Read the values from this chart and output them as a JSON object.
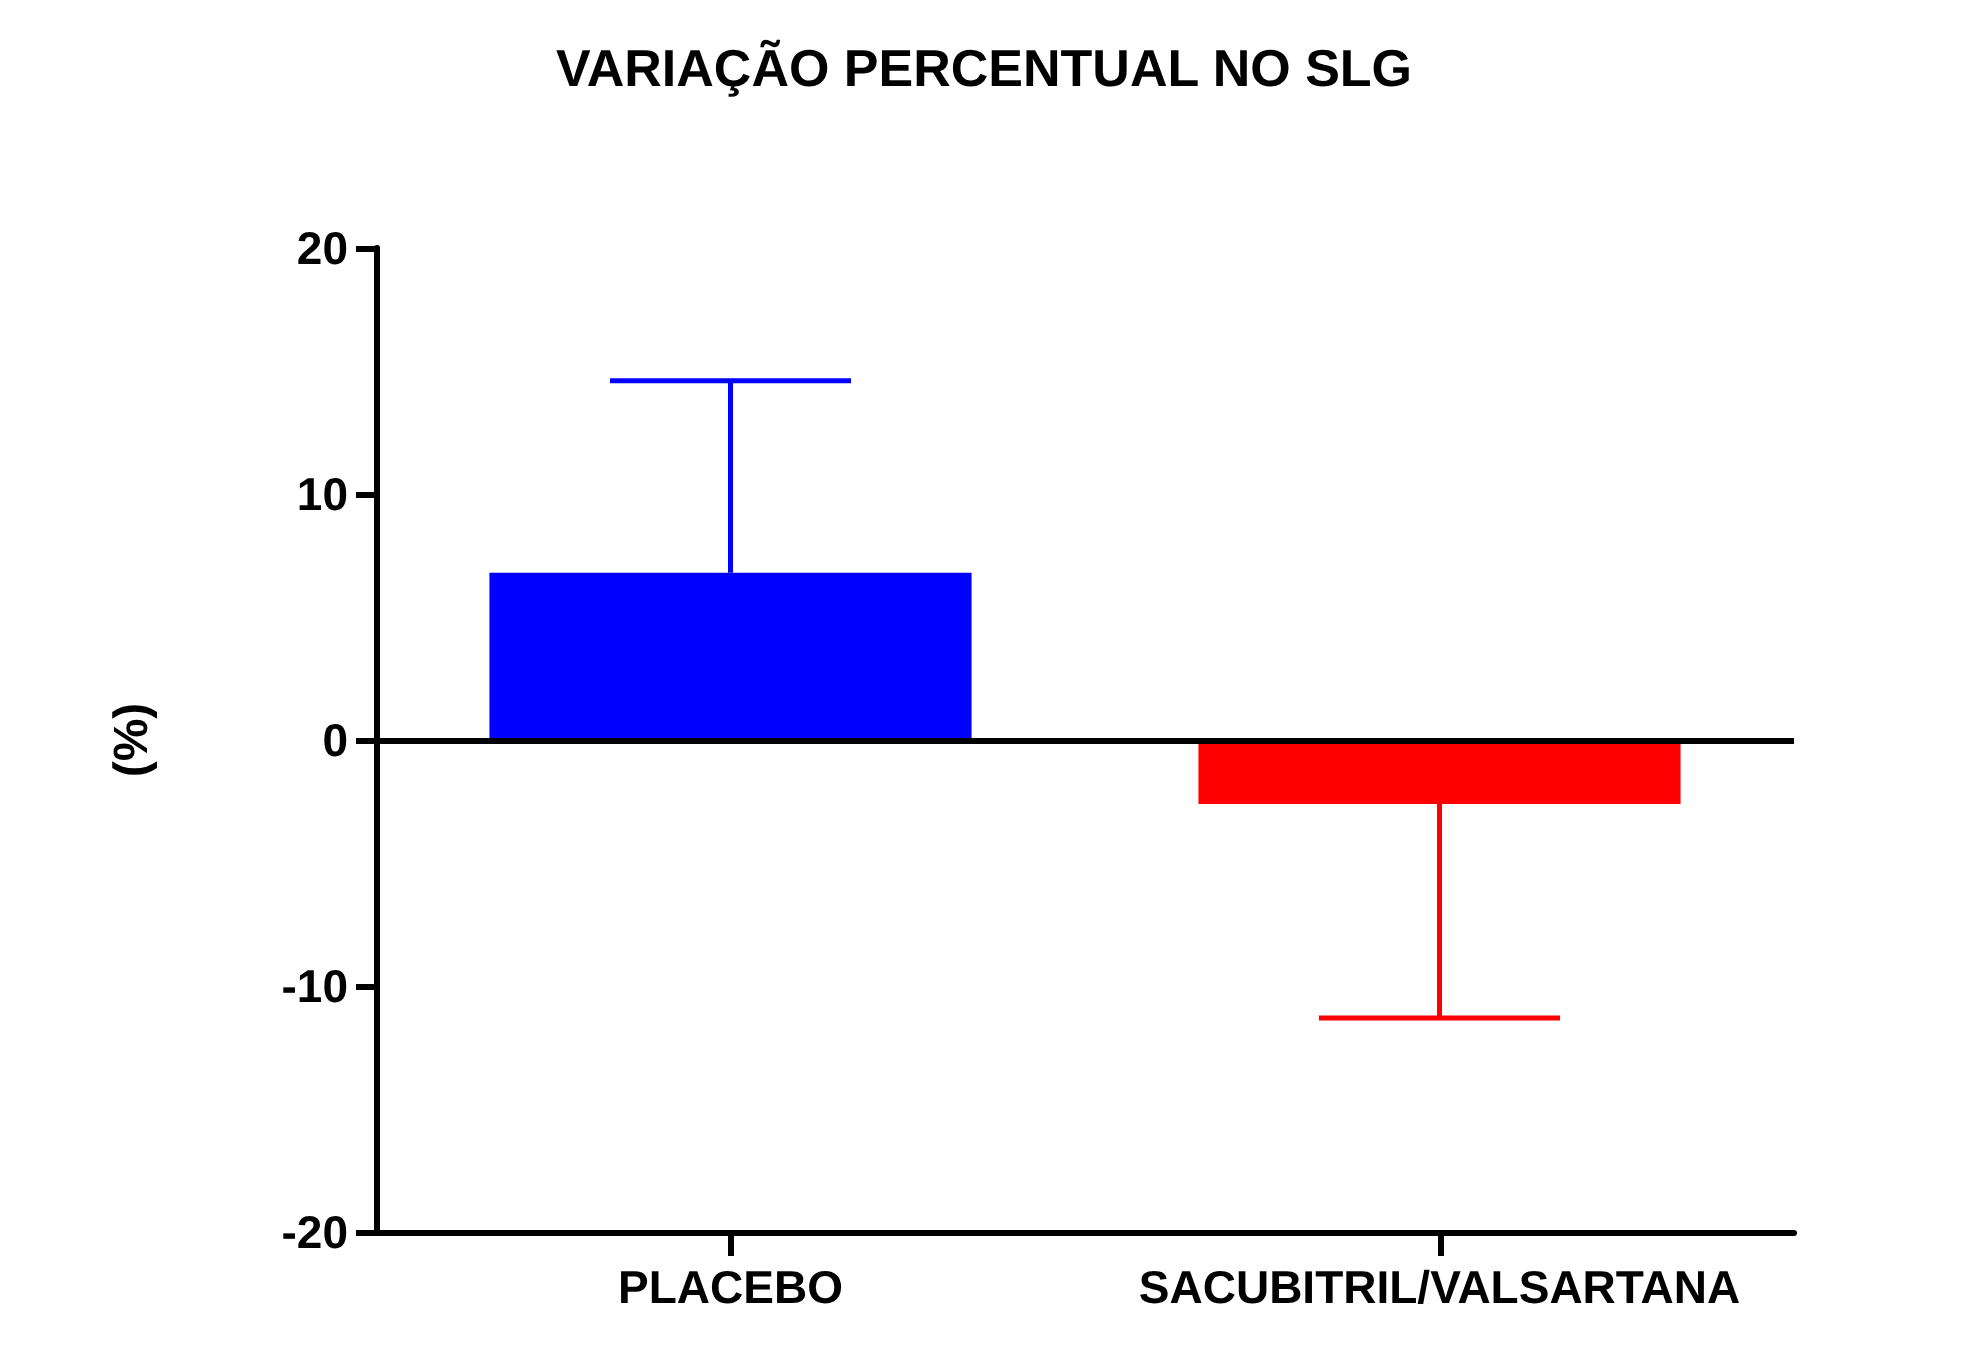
{
  "chart_data": {
    "type": "bar",
    "title": "VARIAÇÃO PERCENTUAL NO SLG",
    "ylabel": "(%)",
    "categories": [
      "PLACEBO",
      "SACUBITRIL/VALSARTANA"
    ],
    "values": [
      6.8,
      -2.6
    ],
    "colors": [
      "#0000ff",
      "#ff0000"
    ],
    "errors": [
      [
        6.8,
        14.6
      ],
      [
        -11.3,
        -2.6
      ]
    ],
    "ylim": [
      -20,
      20
    ],
    "yticks": [
      -20,
      -10,
      0,
      10,
      20
    ],
    "ref_lines": [
      {
        "axis": "y",
        "value": 0,
        "color": "#000000"
      }
    ],
    "grid": false
  }
}
